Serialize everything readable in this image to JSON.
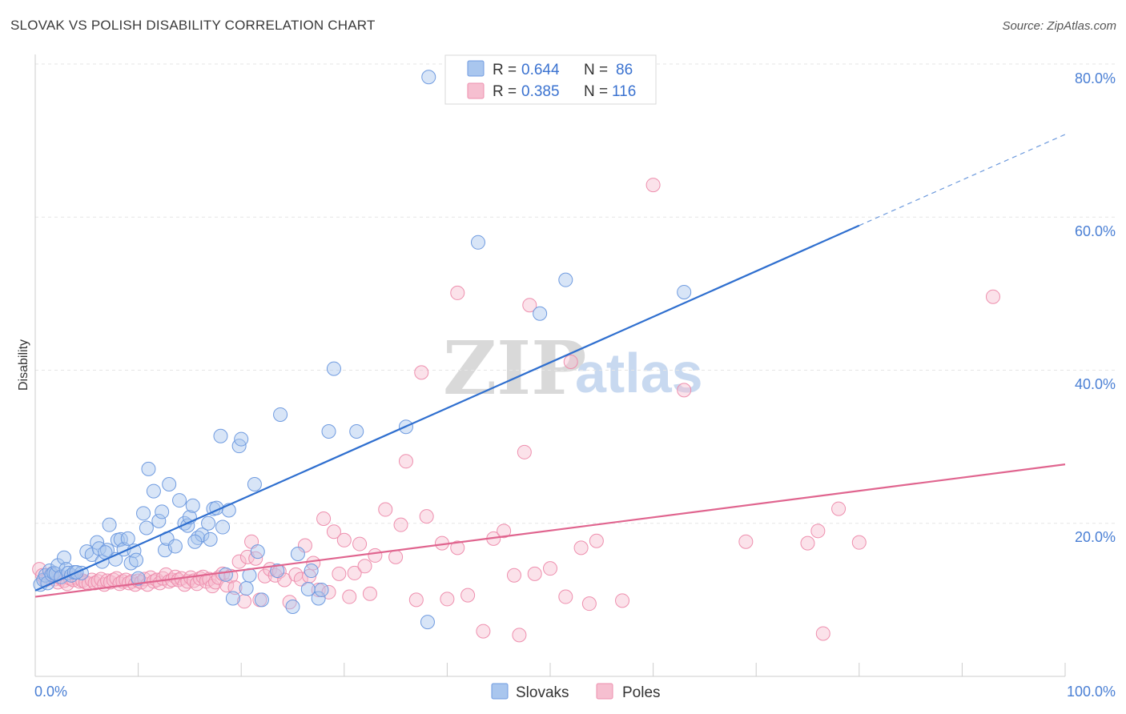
{
  "header": {
    "title": "SLOVAK VS POLISH DISABILITY CORRELATION CHART",
    "source": "Source: ZipAtlas.com"
  },
  "watermark": {
    "zip": "ZIP",
    "atlas": "atlas"
  },
  "legend_top": {
    "rows": [
      {
        "r_label": "R = ",
        "r_value": "0.644",
        "n_label": "N = ",
        "n_value": "86"
      },
      {
        "r_label": "R = ",
        "r_value": "0.385",
        "n_label": "N = ",
        "n_value": "116"
      }
    ]
  },
  "legend_bottom": {
    "items": [
      "Slovaks",
      "Poles"
    ]
  },
  "colors": {
    "slovaks_fill": "#a9c6ee",
    "slovaks_stroke": "#6f9be0",
    "slovaks_line": "#2f6fcf",
    "poles_fill": "#f6bfd0",
    "poles_stroke": "#ee8fae",
    "poles_line": "#e0658f",
    "grid": "#e6e6e6",
    "tick_label": "#4a7fd4"
  },
  "chart_data": {
    "type": "scatter",
    "title": "SLOVAK VS POLISH DISABILITY CORRELATION CHART",
    "xlabel": "",
    "ylabel": "Disability",
    "xlim": [
      0,
      100
    ],
    "ylim": [
      0,
      80
    ],
    "x_tick_labels": [
      "0.0%",
      "100.0%"
    ],
    "y_tick_labels": [
      "20.0%",
      "40.0%",
      "60.0%",
      "80.0%"
    ],
    "y_ticks": [
      20,
      40,
      60,
      80
    ],
    "grid": true,
    "legend_position": "top-center",
    "series": [
      {
        "name": "Slovaks",
        "r": 0.644,
        "n": 86,
        "trend": {
          "x0": 0,
          "y0": 11.2,
          "x1": 80,
          "y1": 58.9,
          "dashed_to_x": 100,
          "dashed_to_y": 70.8
        },
        "points": [
          [
            0.5,
            12.0
          ],
          [
            0.8,
            12.6
          ],
          [
            1.0,
            13.2
          ],
          [
            1.2,
            12.2
          ],
          [
            1.4,
            13.8
          ],
          [
            1.6,
            13.3
          ],
          [
            1.8,
            13.5
          ],
          [
            2.0,
            13.4
          ],
          [
            2.2,
            14.5
          ],
          [
            2.5,
            13.0
          ],
          [
            2.8,
            15.5
          ],
          [
            3.0,
            14.0
          ],
          [
            3.2,
            13.5
          ],
          [
            3.5,
            13.2
          ],
          [
            3.8,
            13.6
          ],
          [
            4.5,
            13.5
          ],
          [
            5.0,
            16.3
          ],
          [
            5.5,
            15.9
          ],
          [
            6.0,
            17.5
          ],
          [
            6.2,
            16.7
          ],
          [
            6.5,
            15.0
          ],
          [
            7.0,
            16.5
          ],
          [
            7.2,
            19.8
          ],
          [
            7.8,
            15.3
          ],
          [
            8.0,
            17.8
          ],
          [
            8.3,
            17.9
          ],
          [
            8.6,
            16.6
          ],
          [
            9.0,
            18.0
          ],
          [
            9.3,
            14.8
          ],
          [
            9.6,
            16.4
          ],
          [
            10.0,
            12.8
          ],
          [
            10.5,
            21.3
          ],
          [
            10.8,
            19.4
          ],
          [
            11.0,
            27.1
          ],
          [
            11.5,
            24.2
          ],
          [
            12.0,
            20.3
          ],
          [
            12.3,
            21.5
          ],
          [
            12.6,
            16.5
          ],
          [
            12.8,
            18.0
          ],
          [
            13.0,
            25.1
          ],
          [
            13.6,
            17.0
          ],
          [
            14.0,
            23.0
          ],
          [
            14.5,
            20.0
          ],
          [
            14.8,
            19.7
          ],
          [
            15.0,
            20.8
          ],
          [
            15.3,
            22.3
          ],
          [
            15.8,
            18.1
          ],
          [
            16.2,
            18.5
          ],
          [
            16.8,
            20.0
          ],
          [
            17.0,
            17.9
          ],
          [
            17.3,
            21.9
          ],
          [
            17.6,
            22.0
          ],
          [
            18.0,
            31.4
          ],
          [
            18.2,
            19.5
          ],
          [
            18.5,
            13.3
          ],
          [
            18.8,
            21.7
          ],
          [
            19.2,
            10.2
          ],
          [
            19.8,
            30.1
          ],
          [
            20.0,
            31.0
          ],
          [
            20.5,
            11.5
          ],
          [
            20.8,
            13.2
          ],
          [
            21.3,
            25.1
          ],
          [
            21.6,
            16.3
          ],
          [
            22.0,
            10.0
          ],
          [
            23.5,
            13.8
          ],
          [
            23.8,
            34.2
          ],
          [
            25.0,
            9.1
          ],
          [
            25.5,
            16.0
          ],
          [
            26.5,
            11.4
          ],
          [
            26.8,
            13.8
          ],
          [
            27.5,
            10.2
          ],
          [
            27.8,
            11.3
          ],
          [
            28.5,
            32.0
          ],
          [
            29.0,
            40.2
          ],
          [
            31.2,
            32.0
          ],
          [
            36.0,
            32.6
          ],
          [
            38.1,
            7.1
          ],
          [
            38.2,
            78.3
          ],
          [
            43.0,
            56.7
          ],
          [
            49.0,
            47.4
          ],
          [
            51.5,
            51.8
          ],
          [
            63.0,
            50.2
          ],
          [
            4.0,
            13.6
          ],
          [
            6.8,
            16.2
          ],
          [
            9.8,
            15.2
          ],
          [
            15.5,
            17.6
          ]
        ]
      },
      {
        "name": "Poles",
        "r": 0.385,
        "n": 116,
        "trend": {
          "x0": 0,
          "y0": 10.4,
          "x1": 100,
          "y1": 27.7
        },
        "points": [
          [
            0.4,
            14.0
          ],
          [
            0.7,
            13.2
          ],
          [
            1.0,
            12.6
          ],
          [
            1.3,
            12.9
          ],
          [
            1.6,
            13.4
          ],
          [
            1.9,
            12.7
          ],
          [
            2.2,
            12.3
          ],
          [
            2.5,
            12.8
          ],
          [
            2.8,
            12.5
          ],
          [
            3.1,
            12.1
          ],
          [
            3.4,
            12.8
          ],
          [
            3.7,
            12.6
          ],
          [
            4.0,
            12.9
          ],
          [
            4.3,
            12.4
          ],
          [
            4.6,
            12.5
          ],
          [
            4.9,
            12.3
          ],
          [
            5.2,
            12.1
          ],
          [
            5.5,
            12.6
          ],
          [
            5.8,
            12.2
          ],
          [
            6.1,
            12.4
          ],
          [
            6.4,
            12.7
          ],
          [
            6.7,
            12.0
          ],
          [
            7.0,
            12.5
          ],
          [
            7.3,
            12.3
          ],
          [
            7.6,
            12.6
          ],
          [
            7.9,
            12.8
          ],
          [
            8.2,
            12.1
          ],
          [
            8.5,
            12.4
          ],
          [
            8.8,
            12.6
          ],
          [
            9.1,
            12.2
          ],
          [
            9.4,
            12.4
          ],
          [
            9.7,
            12.0
          ],
          [
            10.0,
            12.5
          ],
          [
            10.3,
            12.3
          ],
          [
            10.6,
            12.7
          ],
          [
            10.9,
            12.0
          ],
          [
            11.2,
            12.9
          ],
          [
            11.5,
            12.4
          ],
          [
            11.8,
            12.6
          ],
          [
            12.1,
            12.2
          ],
          [
            12.4,
            12.8
          ],
          [
            12.7,
            13.3
          ],
          [
            13.0,
            12.4
          ],
          [
            13.3,
            12.6
          ],
          [
            13.6,
            13.0
          ],
          [
            13.9,
            12.6
          ],
          [
            14.2,
            12.8
          ],
          [
            14.5,
            12.0
          ],
          [
            14.8,
            12.4
          ],
          [
            15.1,
            12.9
          ],
          [
            15.4,
            12.5
          ],
          [
            15.7,
            12.1
          ],
          [
            16.0,
            12.8
          ],
          [
            16.3,
            13.0
          ],
          [
            16.6,
            12.4
          ],
          [
            16.9,
            12.7
          ],
          [
            17.2,
            11.8
          ],
          [
            17.5,
            12.3
          ],
          [
            17.8,
            12.9
          ],
          [
            18.2,
            13.4
          ],
          [
            18.6,
            11.9
          ],
          [
            19.0,
            13.1
          ],
          [
            19.4,
            11.6
          ],
          [
            19.8,
            15.0
          ],
          [
            20.3,
            9.8
          ],
          [
            20.6,
            15.6
          ],
          [
            21.0,
            17.6
          ],
          [
            21.4,
            15.4
          ],
          [
            21.8,
            10.0
          ],
          [
            22.3,
            13.1
          ],
          [
            22.8,
            14.0
          ],
          [
            23.3,
            13.2
          ],
          [
            23.7,
            13.7
          ],
          [
            24.2,
            12.6
          ],
          [
            24.7,
            9.7
          ],
          [
            25.3,
            13.3
          ],
          [
            25.8,
            12.7
          ],
          [
            26.2,
            17.1
          ],
          [
            26.6,
            13.1
          ],
          [
            27.0,
            14.8
          ],
          [
            27.5,
            11.3
          ],
          [
            28.0,
            20.6
          ],
          [
            28.5,
            11.0
          ],
          [
            29.0,
            18.9
          ],
          [
            29.5,
            13.4
          ],
          [
            30.0,
            17.8
          ],
          [
            30.5,
            10.4
          ],
          [
            31.0,
            13.5
          ],
          [
            31.5,
            17.3
          ],
          [
            32.0,
            14.4
          ],
          [
            32.5,
            10.8
          ],
          [
            33.0,
            15.8
          ],
          [
            34.0,
            21.8
          ],
          [
            35.0,
            15.6
          ],
          [
            35.5,
            19.8
          ],
          [
            36.0,
            28.1
          ],
          [
            37.0,
            10.0
          ],
          [
            38.0,
            20.9
          ],
          [
            39.5,
            17.4
          ],
          [
            40.0,
            10.1
          ],
          [
            41.0,
            16.8
          ],
          [
            42.0,
            10.6
          ],
          [
            43.5,
            5.9
          ],
          [
            44.5,
            18.0
          ],
          [
            45.5,
            19.0
          ],
          [
            46.5,
            13.2
          ],
          [
            47.5,
            29.3
          ],
          [
            48.5,
            13.4
          ],
          [
            50.0,
            14.1
          ],
          [
            51.5,
            10.4
          ],
          [
            53.0,
            16.8
          ],
          [
            54.5,
            17.7
          ],
          [
            57.0,
            9.9
          ],
          [
            60.0,
            64.2
          ],
          [
            63.0,
            37.4
          ],
          [
            69.0,
            17.6
          ]
        ]
      }
    ],
    "extra_pole_points": [
      [
        41.0,
        50.1
      ],
      [
        37.5,
        39.7
      ],
      [
        48.0,
        48.5
      ],
      [
        52.0,
        41.1
      ],
      [
        78.0,
        21.9
      ],
      [
        75.0,
        17.4
      ],
      [
        93.0,
        49.6
      ],
      [
        80.0,
        17.5
      ],
      [
        76.5,
        5.6
      ],
      [
        76.0,
        19.0
      ],
      [
        53.8,
        9.5
      ],
      [
        47.0,
        5.4
      ]
    ]
  }
}
